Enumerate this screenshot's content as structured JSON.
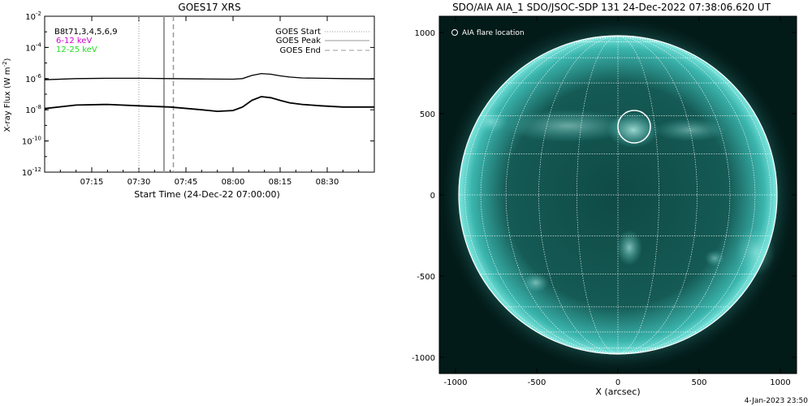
{
  "goes": {
    "title": "GOES17 XRS",
    "xlabel": "Start Time (24-Dec-22 07:00:00)",
    "ylabel_main": "X-ray Flux (W m",
    "ylabel_exp": "-2",
    "ylabel_close": ")",
    "channel_labels": [
      {
        "text": "B8t71,3,4,5,6,9",
        "color": "#000000"
      },
      {
        "text": "6-12 keV",
        "color": "#d400d4"
      },
      {
        "text": "12-25 keV",
        "color": "#22dd22"
      }
    ],
    "legend": [
      {
        "label": "GOES Start",
        "style": "dotted",
        "color": "#999999"
      },
      {
        "label": "GOES Peak",
        "style": "solid",
        "color": "#999999"
      },
      {
        "label": "GOES End",
        "style": "dashed",
        "color": "#999999"
      }
    ]
  },
  "aia": {
    "title": "SDO/AIA AIA_1 SDO/JSOC-SDP 131 24-Dec-2022 07:38:06.620 UT",
    "legend_label": "AIA flare location",
    "xlabel": "X (arcsec)",
    "flare_location_arcsec": {
      "x": 100,
      "y": 420
    },
    "colors": {
      "disk": "#5bd8d2",
      "background": "#021a18",
      "grid": "#ffffff"
    }
  },
  "footer": {
    "timestamp": "4-Jan-2023 23:50"
  },
  "chart_data": [
    {
      "type": "line",
      "title": "GOES17 XRS",
      "xlabel": "Start Time (24-Dec-22 07:00:00)",
      "ylabel": "X-ray Flux (W m^-2)",
      "y_scale": "log",
      "xlim": [
        "07:00",
        "08:45"
      ],
      "ylim": [
        1e-12,
        0.01
      ],
      "x_tick_labels": [
        "07:15",
        "07:30",
        "07:45",
        "08:00",
        "08:15",
        "08:30"
      ],
      "x_ticks_minutes": [
        15,
        30,
        45,
        60,
        75,
        90
      ],
      "y_tick_labels": [
        {
          "base": "10",
          "exp": "-2",
          "value": 0.01
        },
        {
          "base": "10",
          "exp": "-4",
          "value": 0.0001
        },
        {
          "base": "10",
          "exp": "-6",
          "value": 1e-06
        },
        {
          "base": "10",
          "exp": "-8",
          "value": 1e-08
        },
        {
          "base": "10",
          "exp": "-10",
          "value": 1e-10
        },
        {
          "base": "10",
          "exp": "-12",
          "value": 1e-12
        }
      ],
      "series": [
        {
          "name": "6-12 keV",
          "x_minutes": [
            0,
            10,
            20,
            30,
            40,
            50,
            55,
            60,
            63,
            66,
            69,
            72,
            75,
            78,
            82,
            88,
            95,
            105
          ],
          "values": [
            8.5e-07,
            1e-06,
            1.05e-06,
            1.05e-06,
            1e-06,
            9.5e-07,
            9.3e-07,
            9.2e-07,
            1e-06,
            1.6e-06,
            2.1e-06,
            1.9e-06,
            1.5e-06,
            1.25e-06,
            1.1e-06,
            1.05e-06,
            1e-06,
            9.5e-07
          ]
        },
        {
          "name": "12-25 keV",
          "x_minutes": [
            0,
            10,
            20,
            30,
            40,
            50,
            55,
            60,
            63,
            66,
            69,
            72,
            75,
            78,
            82,
            88,
            95,
            105
          ],
          "values": [
            1.2e-08,
            2e-08,
            2.2e-08,
            1.8e-08,
            1.5e-08,
            1e-08,
            8e-09,
            9e-09,
            1.5e-08,
            4e-08,
            7e-08,
            6e-08,
            4e-08,
            2.8e-08,
            2.2e-08,
            1.8e-08,
            1.5e-08,
            1.5e-08
          ]
        }
      ],
      "markers": [
        {
          "name": "GOES Start",
          "x": "07:30"
        },
        {
          "name": "GOES Peak",
          "x": "07:38"
        },
        {
          "name": "GOES End",
          "x": "07:41"
        }
      ]
    },
    {
      "type": "scatter",
      "title": "SDO/AIA AIA_1 SDO/JSOC-SDP 131 24-Dec-2022 07:38:06.620 UT",
      "xlabel": "X (arcsec)",
      "ylabel": "",
      "xlim": [
        -1100,
        1100
      ],
      "ylim": [
        -1100,
        1100
      ],
      "x_tick_labels": [
        "-1000",
        "-500",
        "0",
        "500",
        "1000"
      ],
      "y_tick_labels": [
        "1000",
        "500",
        "0",
        "-500",
        "-1000"
      ],
      "ticks": [
        -1000,
        -500,
        0,
        500,
        1000
      ],
      "solar_radius_arcsec": 975,
      "points": [
        {
          "name": "AIA flare location",
          "x": 100,
          "y": 420
        }
      ]
    }
  ]
}
